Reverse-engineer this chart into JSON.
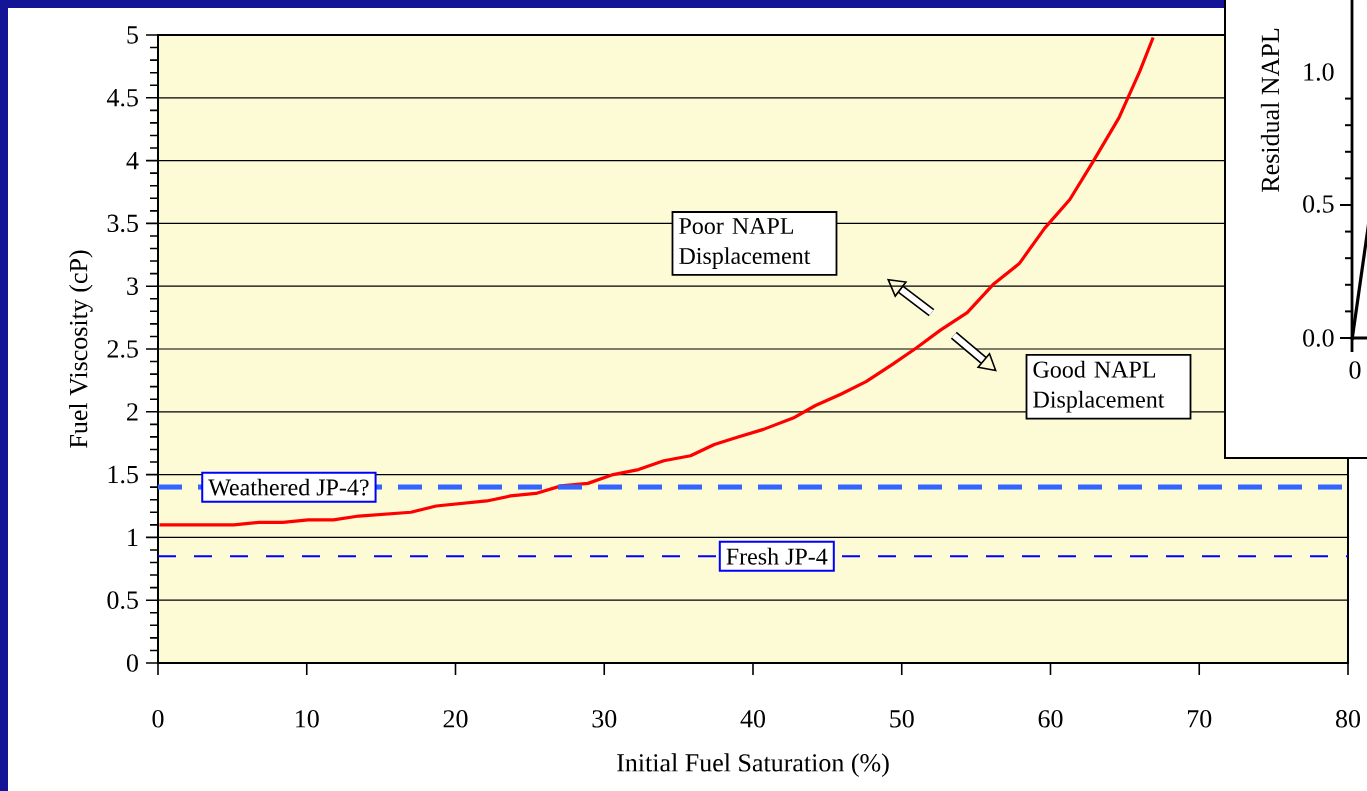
{
  "chart_data": [
    {
      "type": "line",
      "xlabel": "Initial Fuel Saturation (%)",
      "ylabel": "Fuel Viscosity (cP)",
      "x": [
        0.1,
        5.1,
        6.8,
        8.4,
        10.1,
        11.8,
        13.5,
        17.0,
        18.7,
        22.1,
        23.7,
        25.4,
        27.1,
        28.9,
        30.6,
        32.3,
        34.0,
        35.8,
        37.4,
        39.0,
        40.7,
        42.7,
        44.2,
        45.9,
        47.6,
        49.4,
        51.0,
        52.6,
        54.4,
        56.2,
        57.9,
        59.6,
        61.3,
        62.8,
        64.6,
        66.0,
        66.9
      ],
      "series": [
        {
          "color": "#ff0000",
          "values": [
            1.1,
            1.1,
            1.12,
            1.12,
            1.14,
            1.14,
            1.17,
            1.2,
            1.25,
            1.29,
            1.33,
            1.35,
            1.41,
            1.43,
            1.5,
            1.54,
            1.61,
            1.65,
            1.74,
            1.8,
            1.86,
            1.95,
            2.05,
            2.14,
            2.24,
            2.38,
            2.51,
            2.65,
            2.79,
            3.02,
            3.18,
            3.46,
            3.69,
            3.98,
            4.34,
            4.71,
            4.98
          ]
        }
      ],
      "xlim": [
        0,
        80
      ],
      "xticks": [
        0,
        10,
        20,
        30,
        40,
        50,
        60,
        70,
        80
      ],
      "ylim": [
        0,
        5
      ],
      "yticks": [
        0,
        0.5,
        1,
        1.5,
        2,
        2.5,
        3,
        3.5,
        4,
        4.5,
        5
      ],
      "grid": "y",
      "ref_lines": [
        {
          "axis": "y",
          "value": 1.4,
          "label": "Weathered JP-4?",
          "color": "#3366ff",
          "line_style": "dashed"
        },
        {
          "axis": "y",
          "value": 0.85,
          "label": "Fresh JP-4",
          "color": "#0000ff",
          "line_style": "dashed"
        }
      ],
      "annotations": [
        "Poor NAPL Displacement",
        "Good NAPL Displacement"
      ]
    },
    {
      "type": "other",
      "annotations": [
        "Residual NAPL",
        "1.0",
        "0.5",
        "0.0",
        "0"
      ]
    }
  ]
}
